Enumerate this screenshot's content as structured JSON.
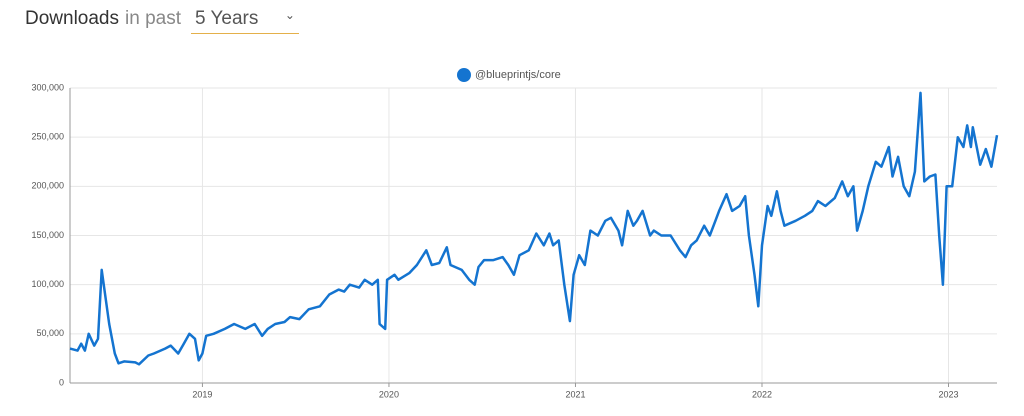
{
  "header": {
    "title": "Downloads",
    "subtitle": "in past",
    "period": "5 Years"
  },
  "chart_data": {
    "type": "line",
    "x": [
      2018.29,
      2018.33,
      2018.35,
      2018.37,
      2018.39,
      2018.42,
      2018.44,
      2018.46,
      2018.5,
      2018.53,
      2018.55,
      2018.58,
      2018.64,
      2018.66,
      2018.71,
      2018.74,
      2018.8,
      2018.83,
      2018.87,
      2018.9,
      2018.93,
      2018.96,
      2018.98,
      2019.0,
      2019.02,
      2019.06,
      2019.12,
      2019.17,
      2019.23,
      2019.28,
      2019.32,
      2019.35,
      2019.39,
      2019.44,
      2019.47,
      2019.52,
      2019.57,
      2019.63,
      2019.68,
      2019.73,
      2019.76,
      2019.79,
      2019.84,
      2019.87,
      2019.91,
      2019.94,
      2019.95,
      2019.98,
      2019.99,
      2020.03,
      2020.05,
      2020.11,
      2020.15,
      2020.2,
      2020.23,
      2020.27,
      2020.31,
      2020.33,
      2020.39,
      2020.43,
      2020.46,
      2020.48,
      2020.51,
      2020.56,
      2020.61,
      2020.64,
      2020.67,
      2020.7,
      2020.75,
      2020.79,
      2020.83,
      2020.86,
      2020.88,
      2020.91,
      2020.94,
      2020.97,
      2020.99,
      2021.02,
      2021.05,
      2021.08,
      2021.12,
      2021.16,
      2021.19,
      2021.23,
      2021.25,
      2021.28,
      2021.31,
      2021.33,
      2021.36,
      2021.4,
      2021.42,
      2021.46,
      2021.51,
      2021.56,
      2021.59,
      2021.62,
      2021.65,
      2021.69,
      2021.72,
      2021.75,
      2021.77,
      2021.81,
      2021.84,
      2021.88,
      2021.91,
      2021.93,
      2021.96,
      2021.98,
      2022.0,
      2022.03,
      2022.05,
      2022.08,
      2022.1,
      2022.12,
      2022.18,
      2022.23,
      2022.27,
      2022.3,
      2022.34,
      2022.39,
      2022.43,
      2022.46,
      2022.49,
      2022.51,
      2022.54,
      2022.57,
      2022.61,
      2022.64,
      2022.68,
      2022.7,
      2022.73,
      2022.76,
      2022.79,
      2022.82,
      2022.85,
      2022.87,
      2022.9,
      2022.93,
      2022.95,
      2022.97,
      2022.99,
      2023.02,
      2023.05,
      2023.08,
      2023.1,
      2023.12,
      2023.13,
      2023.17,
      2023.2,
      2023.23,
      2023.26
    ],
    "series": [
      {
        "name": "@blueprintjs/core",
        "color": "#1474d0",
        "values": [
          35000,
          33000,
          40000,
          33000,
          50000,
          38000,
          45000,
          115000,
          60000,
          30000,
          20000,
          22000,
          21000,
          19000,
          28000,
          30000,
          35000,
          38000,
          30000,
          40000,
          50000,
          45000,
          23000,
          30000,
          48000,
          50000,
          55000,
          60000,
          55000,
          60000,
          48000,
          55000,
          60000,
          62000,
          67000,
          65000,
          75000,
          78000,
          90000,
          95000,
          93000,
          100000,
          97000,
          105000,
          100000,
          105000,
          60000,
          55000,
          105000,
          110000,
          105000,
          112000,
          120000,
          135000,
          120000,
          122000,
          138000,
          120000,
          115000,
          105000,
          100000,
          118000,
          125000,
          125000,
          128000,
          120000,
          110000,
          130000,
          135000,
          152000,
          140000,
          152000,
          140000,
          145000,
          100000,
          63000,
          110000,
          130000,
          120000,
          155000,
          150000,
          165000,
          168000,
          155000,
          140000,
          175000,
          160000,
          165000,
          175000,
          150000,
          155000,
          150000,
          150000,
          135000,
          128000,
          140000,
          145000,
          160000,
          150000,
          165000,
          175000,
          192000,
          175000,
          180000,
          190000,
          150000,
          110000,
          78000,
          140000,
          180000,
          170000,
          195000,
          175000,
          160000,
          165000,
          170000,
          175000,
          185000,
          180000,
          188000,
          205000,
          190000,
          200000,
          155000,
          175000,
          200000,
          225000,
          220000,
          240000,
          210000,
          230000,
          200000,
          190000,
          215000,
          295000,
          205000,
          210000,
          212000,
          150000,
          100000,
          200000,
          200000,
          250000,
          240000,
          262000,
          240000,
          260000,
          222000,
          238000,
          220000,
          252000
        ]
      }
    ],
    "xlim": [
      2018.29,
      2023.26
    ],
    "xticks": [
      2019,
      2020,
      2021,
      2022,
      2023
    ],
    "ylim": [
      0,
      300000
    ],
    "yticks": [
      0,
      {
        "value": 50000,
        "label": "50,000"
      },
      {
        "value": 100000,
        "label": "100,000"
      },
      {
        "value": 150000,
        "label": "150,000"
      },
      {
        "value": 200000,
        "label": "200,000"
      },
      {
        "value": 250000,
        "label": "250,000"
      },
      {
        "value": 300000,
        "label": "300,000"
      }
    ],
    "grid": true,
    "legend": "top"
  }
}
